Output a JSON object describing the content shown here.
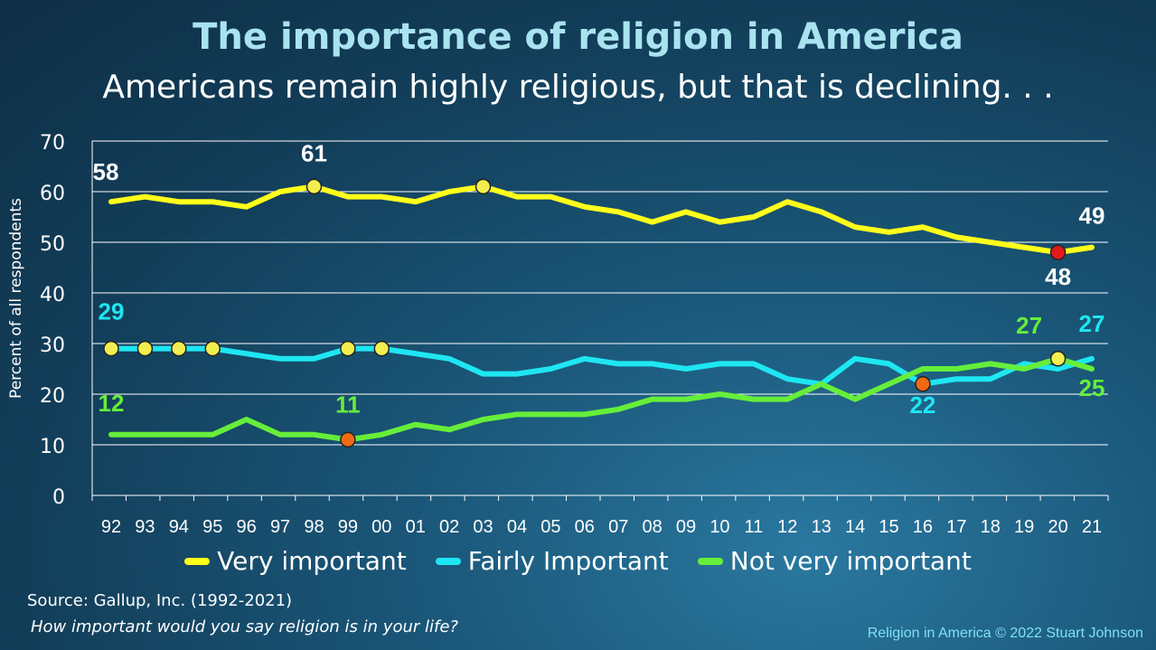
{
  "title": "The importance of religion in America",
  "subtitle": "Americans remain highly religious, but that is declining. . .",
  "source": "Source: Gallup, Inc. (1992-2021)",
  "question": "How important would you say religion is in your life?",
  "credit": "Religion in America © 2022 Stuart Johnson",
  "colors": {
    "very": "#ffff1a",
    "fairly": "#1ee6f2",
    "not": "#66ee3a",
    "fill": "#f2ee50",
    "red": "#e31919",
    "orange": "#f06a14"
  },
  "chart_data": {
    "type": "line",
    "ylabel": "Percent of all respondents",
    "ylim": [
      0,
      70
    ],
    "yticks": [
      0,
      10,
      20,
      30,
      40,
      50,
      60,
      70
    ],
    "grid": true,
    "legend_position": "bottom",
    "categories": [
      "92",
      "93",
      "94",
      "95",
      "96",
      "97",
      "98",
      "99",
      "00",
      "01",
      "02",
      "03",
      "04",
      "05",
      "06",
      "07",
      "08",
      "09",
      "10",
      "11",
      "12",
      "13",
      "14",
      "15",
      "16",
      "17",
      "18",
      "19",
      "20",
      "21"
    ],
    "series": [
      {
        "name": "Very important",
        "color_key": "very",
        "values": [
          58,
          59,
          58,
          58,
          57,
          60,
          61,
          59,
          59,
          58,
          60,
          61,
          59,
          59,
          57,
          56,
          54,
          56,
          54,
          55,
          58,
          56,
          53,
          52,
          53,
          51,
          50,
          49,
          48,
          49
        ]
      },
      {
        "name": "Fairly Important",
        "color_key": "fairly",
        "values": [
          29,
          29,
          29,
          29,
          28,
          27,
          27,
          29,
          29,
          28,
          27,
          24,
          24,
          25,
          27,
          26,
          26,
          25,
          26,
          26,
          23,
          22,
          27,
          26,
          22,
          23,
          23,
          26,
          25,
          27
        ]
      },
      {
        "name": "Not very important",
        "color_key": "not",
        "values": [
          12,
          12,
          12,
          12,
          15,
          12,
          12,
          11,
          12,
          14,
          13,
          15,
          16,
          16,
          16,
          17,
          19,
          19,
          20,
          19,
          19,
          22,
          19,
          22,
          25,
          25,
          26,
          25,
          27,
          25
        ]
      }
    ],
    "markers": [
      {
        "series": 0,
        "index": 6,
        "color_key": "fill"
      },
      {
        "series": 0,
        "index": 11,
        "color_key": "fill"
      },
      {
        "series": 0,
        "index": 28,
        "color_key": "red"
      },
      {
        "series": 1,
        "index": 0,
        "color_key": "fill"
      },
      {
        "series": 1,
        "index": 1,
        "color_key": "fill"
      },
      {
        "series": 1,
        "index": 2,
        "color_key": "fill"
      },
      {
        "series": 1,
        "index": 3,
        "color_key": "fill"
      },
      {
        "series": 1,
        "index": 7,
        "color_key": "fill"
      },
      {
        "series": 1,
        "index": 8,
        "color_key": "fill"
      },
      {
        "series": 1,
        "index": 24,
        "color_key": "orange"
      },
      {
        "series": 2,
        "index": 7,
        "color_key": "orange"
      },
      {
        "series": 2,
        "index": 28,
        "color_key": "fill"
      }
    ],
    "annotations": [
      {
        "text": "58",
        "series": 0,
        "index": 0,
        "color_key": "white",
        "dx": -6,
        "dy": -24
      },
      {
        "text": "61",
        "series": 0,
        "index": 6,
        "color_key": "white",
        "dx": 0,
        "dy": -28
      },
      {
        "text": "49",
        "series": 0,
        "index": 29,
        "color_key": "white",
        "dx": 0,
        "dy": -26
      },
      {
        "text": "48",
        "series": 0,
        "index": 28,
        "color_key": "white",
        "dx": 0,
        "dy": 36
      },
      {
        "text": "29",
        "series": 1,
        "index": 0,
        "color_key": "fairly",
        "dx": 0,
        "dy": -32
      },
      {
        "text": "27",
        "series": 1,
        "index": 29,
        "color_key": "fairly",
        "dx": 0,
        "dy": -30
      },
      {
        "text": "22",
        "series": 1,
        "index": 24,
        "color_key": "fairly",
        "dx": 0,
        "dy": 32
      },
      {
        "text": "12",
        "series": 2,
        "index": 0,
        "color_key": "not",
        "dx": 0,
        "dy": -26
      },
      {
        "text": "11",
        "series": 2,
        "index": 7,
        "color_key": "not",
        "dx": 0,
        "dy": -30
      },
      {
        "text": "27",
        "series": 2,
        "index": 28,
        "color_key": "not",
        "dx": -32,
        "dy": -28
      },
      {
        "text": "25",
        "series": 2,
        "index": 29,
        "color_key": "not",
        "dx": 0,
        "dy": 30
      }
    ]
  }
}
